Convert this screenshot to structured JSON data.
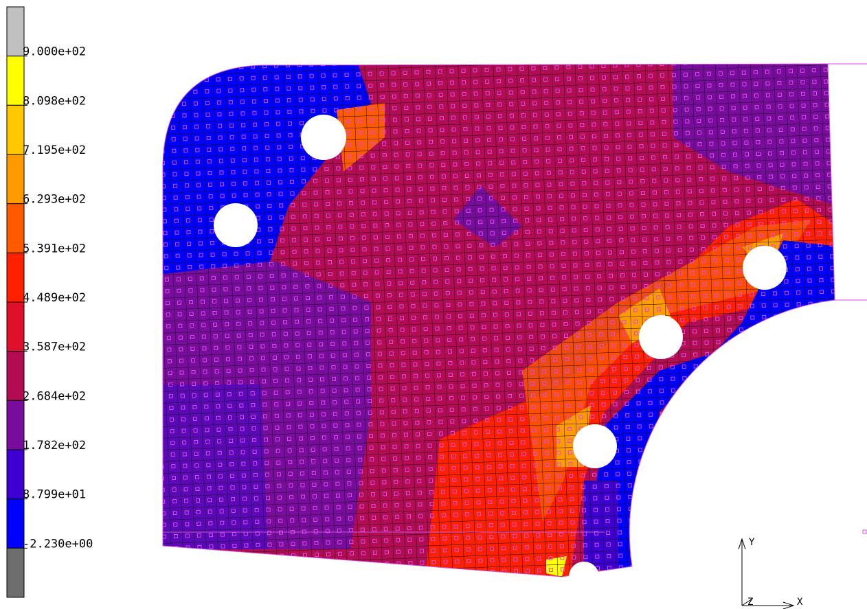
{
  "legend": {
    "colors": [
      "#c0c0c0",
      "#ffff00",
      "#ffc800",
      "#ff9a00",
      "#ff5a00",
      "#ff2000",
      "#e0102a",
      "#b40c52",
      "#780c9c",
      "#3c00d2",
      "#0000ff",
      "#6e6e6e"
    ],
    "labels": [
      "9.000e+02",
      "8.098e+02",
      "7.195e+02",
      "6.293e+02",
      "5.391e+02",
      "4.489e+02",
      "3.587e+02",
      "2.684e+02",
      "1.782e+02",
      "8.799e+01",
      "-2.230e+00"
    ]
  },
  "triad": {
    "y": "Y",
    "z": "Z",
    "x": "X"
  }
}
